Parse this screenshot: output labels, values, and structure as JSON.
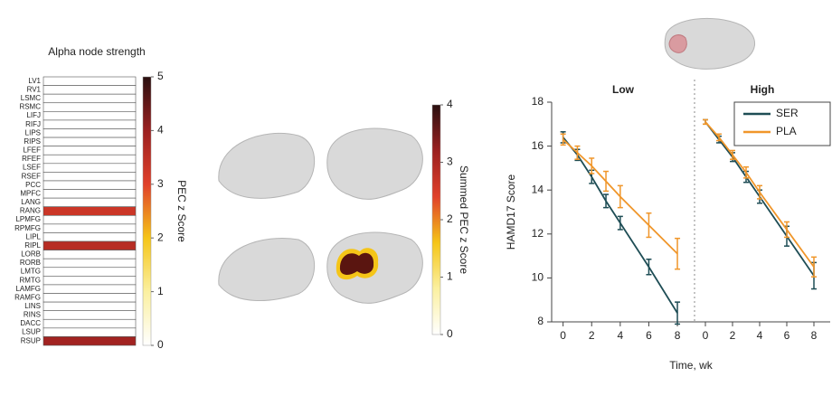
{
  "chart_data": [
    {
      "type": "heatmap",
      "title": "Alpha node strength",
      "categories": [
        "LV1",
        "RV1",
        "LSMC",
        "RSMC",
        "LIFJ",
        "RIFJ",
        "LIPS",
        "RIPS",
        "LFEF",
        "RFEF",
        "LSEF",
        "RSEF",
        "PCC",
        "MPFC",
        "LANG",
        "RANG",
        "LPMFG",
        "RPMFG",
        "LIPL",
        "RIPL",
        "LORB",
        "RORB",
        "LMTG",
        "RMTG",
        "LAMFG",
        "RAMFG",
        "LINS",
        "RINS",
        "DACC",
        "LSUP",
        "RSUP"
      ],
      "values": [
        0,
        0,
        0,
        0,
        0,
        0,
        0,
        0,
        0,
        0,
        0,
        0,
        0,
        0,
        0,
        3.3,
        0,
        0,
        0,
        3.6,
        0,
        0,
        0,
        0,
        0,
        0,
        0,
        0,
        0,
        0,
        3.9
      ],
      "colorbar": {
        "label": "PEC z Score",
        "lim": [
          0,
          5
        ],
        "ticks": [
          0,
          1,
          2,
          3,
          4,
          5
        ]
      }
    },
    {
      "type": "colorbar",
      "colorbar": {
        "label": "Summed PEC z Score",
        "lim": [
          0,
          4
        ],
        "ticks": [
          0,
          1,
          2,
          3,
          4
        ]
      }
    },
    {
      "type": "line",
      "ylabel": "HAMD17 Score",
      "xlabel": "Time, wk",
      "x": [
        0,
        1,
        2,
        3,
        4,
        6,
        8
      ],
      "xlim": [
        -0.8,
        9.2
      ],
      "xticks": [
        0,
        2,
        4,
        6,
        8
      ],
      "ylim": [
        8,
        18
      ],
      "yticks": [
        8,
        10,
        12,
        14,
        16,
        18
      ],
      "legend": "upper right",
      "panels": [
        {
          "title": "Low",
          "series": [
            {
              "name": "SER",
              "color": "#1e4d55",
              "values": [
                16.4,
                15.6,
                14.6,
                13.5,
                12.5,
                10.5,
                8.4
              ],
              "errors": [
                0.25,
                0.25,
                0.3,
                0.3,
                0.3,
                0.35,
                0.5
              ]
            },
            {
              "name": "PLA",
              "color": "#f0962a",
              "values": [
                16.3,
                15.7,
                15.1,
                14.4,
                13.7,
                12.4,
                11.1
              ],
              "errors": [
                0.25,
                0.3,
                0.35,
                0.45,
                0.5,
                0.55,
                0.7
              ]
            }
          ]
        },
        {
          "title": "High",
          "series": [
            {
              "name": "SER",
              "color": "#1e4d55",
              "values": [
                17.1,
                16.3,
                15.5,
                14.6,
                13.7,
                11.9,
                10.1
              ],
              "errors": [
                0.1,
                0.15,
                0.2,
                0.25,
                0.3,
                0.45,
                0.6
              ]
            },
            {
              "name": "PLA",
              "color": "#f0962a",
              "values": [
                17.1,
                16.4,
                15.6,
                14.8,
                13.9,
                12.2,
                10.5
              ],
              "errors": [
                0.1,
                0.15,
                0.2,
                0.25,
                0.3,
                0.35,
                0.45
              ]
            }
          ]
        }
      ]
    }
  ]
}
